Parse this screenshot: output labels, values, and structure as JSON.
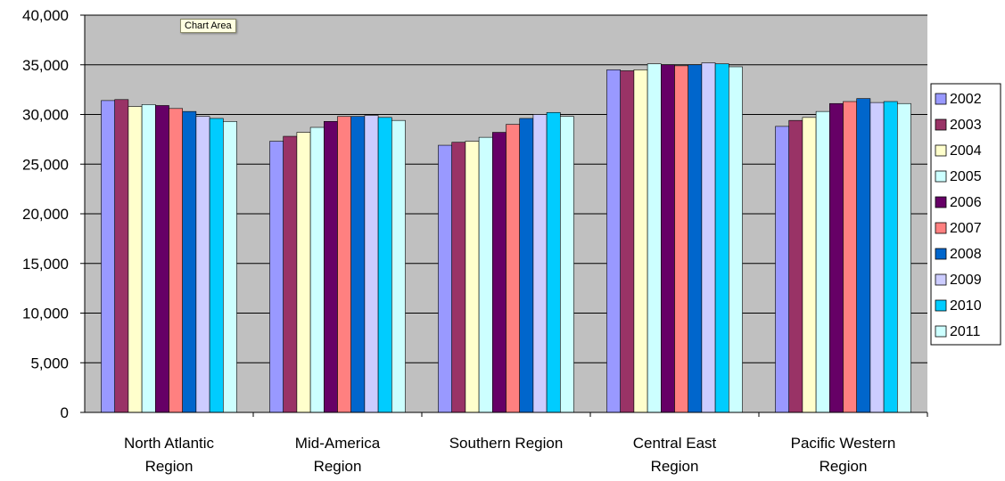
{
  "tooltip": "Chart Area",
  "chart_data": {
    "type": "bar",
    "categories": [
      [
        "North Atlantic",
        "Region"
      ],
      [
        "Mid-America",
        "Region"
      ],
      [
        "Southern Region"
      ],
      [
        "Central East",
        "Region"
      ],
      [
        "Pacific Western",
        "Region"
      ]
    ],
    "series": [
      {
        "name": "2002",
        "color": "#9999ff",
        "values": [
          31400,
          27300,
          26900,
          34500,
          28800
        ]
      },
      {
        "name": "2003",
        "color": "#993366",
        "values": [
          31500,
          27800,
          27200,
          34400,
          29400
        ]
      },
      {
        "name": "2004",
        "color": "#ffffcc",
        "values": [
          30800,
          28200,
          27300,
          34500,
          29700
        ]
      },
      {
        "name": "2005",
        "color": "#ccffff",
        "values": [
          31000,
          28700,
          27700,
          35100,
          30300
        ]
      },
      {
        "name": "2006",
        "color": "#660066",
        "values": [
          30900,
          29300,
          28200,
          35000,
          31100
        ]
      },
      {
        "name": "2007",
        "color": "#ff8080",
        "values": [
          30600,
          29800,
          29000,
          34900,
          31300
        ]
      },
      {
        "name": "2008",
        "color": "#0066cc",
        "values": [
          30300,
          29800,
          29600,
          35000,
          31600
        ]
      },
      {
        "name": "2009",
        "color": "#ccccff",
        "values": [
          29800,
          29900,
          30000,
          35200,
          31200
        ]
      },
      {
        "name": "2010",
        "color": "#00ccff",
        "values": [
          29600,
          29700,
          30200,
          35100,
          31300
        ]
      },
      {
        "name": "2011",
        "color": "#ccffff",
        "values": [
          29300,
          29400,
          29800,
          34800,
          31100
        ]
      }
    ],
    "ylim": [
      0,
      40000
    ],
    "yticks": [
      "0",
      "5,000",
      "10,000",
      "15,000",
      "20,000",
      "25,000",
      "30,000",
      "35,000",
      "40,000"
    ],
    "ytick_values": [
      0,
      5000,
      10000,
      15000,
      20000,
      25000,
      30000,
      35000,
      40000
    ],
    "grid": true,
    "legend_position": "right",
    "plot_background": "#c0c0c0"
  }
}
